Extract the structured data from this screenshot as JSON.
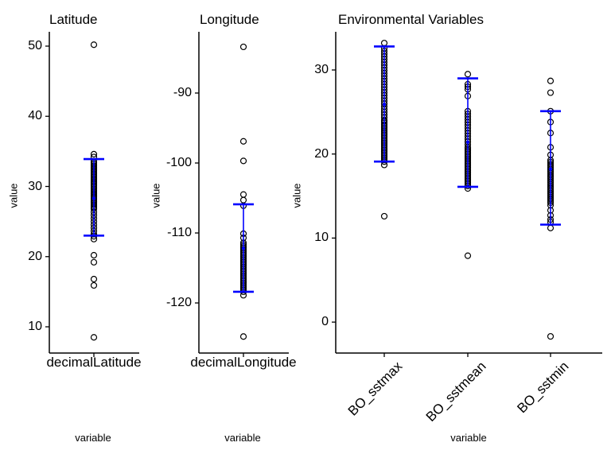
{
  "figure": {
    "background": "#ffffff"
  },
  "style": {
    "point_color": "#000000",
    "range_color": "#0000ff",
    "axis_color": "#000000"
  },
  "chart_data": [
    {
      "type": "scatter",
      "title": "Latitude",
      "ylabel": "value",
      "xlabel": "variable",
      "yticks": [
        10,
        20,
        30,
        40,
        50
      ],
      "ylim": [
        6,
        52
      ],
      "grid": false,
      "categories": [
        "decimalLatitude"
      ],
      "series": [
        {
          "name": "decimalLatitude",
          "points": [
            50.2,
            34.6,
            34.2,
            22.9,
            22.5,
            20.2,
            19.2,
            16.8,
            15.9,
            8.5
          ],
          "dense_bands": [
            {
              "from": 27.0,
              "to": 33.7,
              "step": 0.22
            },
            {
              "from": 23.2,
              "to": 26.8,
              "step": 0.45
            }
          ],
          "range": {
            "lower": 23.0,
            "mean": 28.3,
            "upper": 33.9
          }
        }
      ]
    },
    {
      "type": "scatter",
      "title": "Longitude",
      "ylabel": "value",
      "xlabel": "variable",
      "yticks": [
        -120,
        -110,
        -100,
        -90
      ],
      "ylim": [
        -127,
        -82
      ],
      "grid": false,
      "categories": [
        "decimalLongitude"
      ],
      "series": [
        {
          "name": "decimalLongitude",
          "points": [
            -83.4,
            -96.9,
            -99.7,
            -104.5,
            -105.3,
            -106.1,
            -110.1,
            -110.7,
            -118.9,
            -124.8
          ],
          "dense_bands": [
            {
              "from": -118.4,
              "to": -111.3,
              "step": 0.25
            }
          ],
          "range": {
            "lower": -118.4,
            "mean": -112.2,
            "upper": -105.9
          }
        }
      ]
    },
    {
      "type": "scatter",
      "title": "Environmental Variables",
      "ylabel": "value",
      "xlabel": "variable",
      "yticks": [
        0,
        10,
        20,
        30
      ],
      "ylim": [
        -3.5,
        34
      ],
      "grid": false,
      "categories": [
        "BO_sstmax",
        "BO_sstmean",
        "BO_sstmin"
      ],
      "series": [
        {
          "name": "BO_sstmax",
          "points": [
            33.2,
            18.7,
            12.6
          ],
          "dense_bands": [
            {
              "from": 24.0,
              "to": 32.9,
              "step": 0.33
            },
            {
              "from": 19.1,
              "to": 23.9,
              "step": 0.2
            }
          ],
          "range": {
            "lower": 19.1,
            "mean": 25.9,
            "upper": 32.8
          }
        },
        {
          "name": "BO_sstmean",
          "points": [
            29.5,
            28.3,
            28.0,
            27.7,
            26.9,
            15.9,
            7.9
          ],
          "dense_bands": [
            {
              "from": 20.8,
              "to": 25.4,
              "step": 0.33
            },
            {
              "from": 16.2,
              "to": 20.7,
              "step": 0.2
            }
          ],
          "range": {
            "lower": 16.1,
            "mean": 21.4,
            "upper": 29.0
          }
        },
        {
          "name": "BO_sstmin",
          "points": [
            28.7,
            27.3,
            25.1,
            23.8,
            22.5,
            20.8,
            19.9,
            13.9,
            13.3,
            12.7,
            12.2,
            11.9,
            11.2,
            -1.7
          ],
          "dense_bands": [
            {
              "from": 14.2,
              "to": 19.4,
              "step": 0.22
            }
          ],
          "range": {
            "lower": 11.6,
            "mean": 18.2,
            "upper": 25.1
          }
        }
      ]
    }
  ]
}
